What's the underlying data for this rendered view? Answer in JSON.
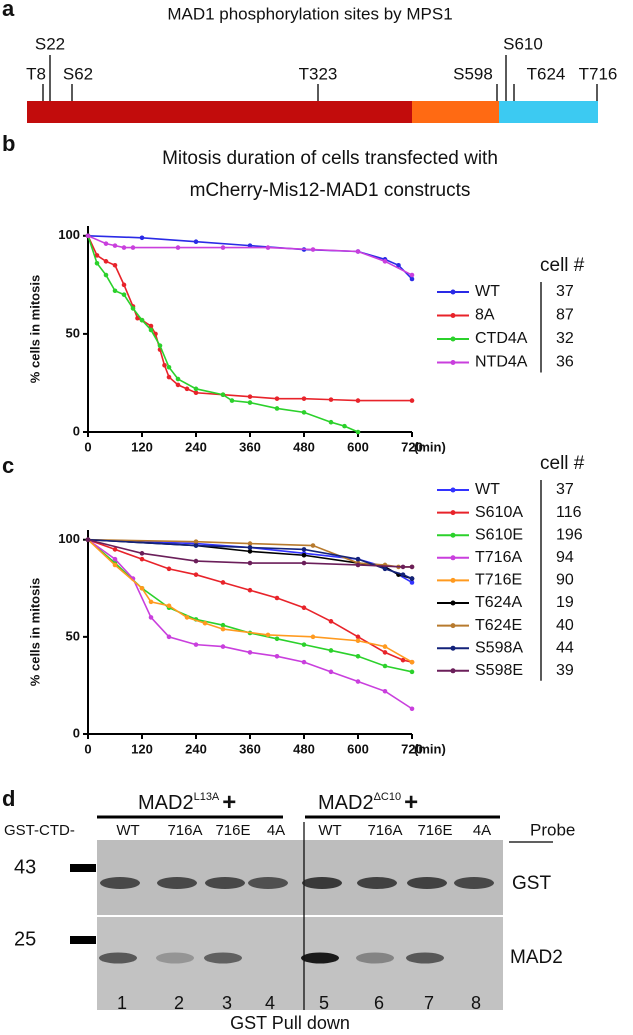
{
  "panel_a": {
    "label": "a",
    "title": "MAD1 phosphorylation sites by MPS1",
    "sites": [
      "T8",
      "S22",
      "S62",
      "T323",
      "S598",
      "S610",
      "T624",
      "T716"
    ],
    "domain_colors": [
      "#c20c0c",
      "#ff6a13",
      "#3ccaf2"
    ]
  },
  "chart_data": [
    {
      "type": "line",
      "label": "b",
      "title_lines": [
        "Mitosis duration of cells transfected with",
        "mCherry-Mis12-MAD1 constructs"
      ],
      "y_label": "% cells in mitosis",
      "x_label": "(min)",
      "legend_title": "cell #",
      "xlim": [
        0,
        720
      ],
      "xticks": [
        0,
        120,
        240,
        360,
        480,
        600,
        720
      ],
      "ylim": [
        0,
        105
      ],
      "yticks": [
        0,
        50,
        100
      ],
      "series": [
        {
          "name": "WT",
          "color": "#2a2ae6",
          "cell_count": 37,
          "x": [
            0,
            120,
            240,
            360,
            480,
            600,
            660,
            690,
            720
          ],
          "values": [
            100,
            99,
            97,
            95,
            93,
            92,
            88,
            85,
            78
          ]
        },
        {
          "name": "8A",
          "color": "#e8232a",
          "cell_count": 87,
          "x": [
            0,
            20,
            40,
            60,
            80,
            100,
            110,
            120,
            140,
            150,
            160,
            170,
            180,
            200,
            220,
            240,
            300,
            360,
            420,
            480,
            540,
            600,
            720
          ],
          "values": [
            100,
            90,
            87,
            85,
            75,
            64,
            58,
            57,
            54,
            50,
            42,
            34,
            28,
            24,
            22,
            20,
            19,
            18,
            17,
            17,
            16.5,
            16,
            16
          ]
        },
        {
          "name": "CTD4A",
          "color": "#2bd12b",
          "cell_count": 32,
          "x": [
            0,
            20,
            40,
            60,
            80,
            100,
            120,
            140,
            160,
            180,
            200,
            240,
            300,
            320,
            360,
            420,
            480,
            540,
            570,
            600
          ],
          "values": [
            100,
            86,
            80,
            72,
            70,
            63,
            57,
            52,
            44,
            33,
            27,
            22,
            19,
            16,
            15,
            12,
            10,
            5,
            3,
            0
          ]
        },
        {
          "name": "NTD4A",
          "color": "#c93fdd",
          "cell_count": 36,
          "x": [
            0,
            40,
            60,
            80,
            100,
            200,
            300,
            400,
            500,
            600,
            660,
            720
          ],
          "values": [
            100,
            96,
            95,
            94,
            94,
            94,
            94,
            94,
            93,
            92,
            87,
            80
          ]
        }
      ]
    },
    {
      "type": "line",
      "label": "c",
      "y_label": "% cells in mitosis",
      "x_label": "(min)",
      "legend_title": "cell #",
      "xlim": [
        0,
        720
      ],
      "xticks": [
        0,
        120,
        240,
        360,
        480,
        600,
        720
      ],
      "ylim": [
        0,
        105
      ],
      "yticks": [
        0,
        50,
        100
      ],
      "series": [
        {
          "name": "WT",
          "color": "#3333ff",
          "cell_count": 37,
          "x": [
            0,
            240,
            360,
            480,
            600,
            660,
            720
          ],
          "values": [
            100,
            98,
            96,
            93,
            90,
            86,
            78
          ]
        },
        {
          "name": "S610A",
          "color": "#e8232a",
          "cell_count": 116,
          "x": [
            0,
            60,
            120,
            180,
            240,
            300,
            360,
            420,
            480,
            540,
            600,
            660,
            700,
            720
          ],
          "values": [
            100,
            95,
            90,
            85,
            82,
            78,
            74,
            70,
            65,
            58,
            50,
            42,
            38,
            37
          ]
        },
        {
          "name": "S610E",
          "color": "#2bd12b",
          "cell_count": 196,
          "x": [
            0,
            60,
            120,
            180,
            240,
            300,
            360,
            420,
            480,
            540,
            600,
            660,
            720
          ],
          "values": [
            100,
            88,
            75,
            65,
            59,
            56,
            52,
            49,
            46,
            43,
            40,
            35,
            32
          ]
        },
        {
          "name": "T716A",
          "color": "#c93fdd",
          "cell_count": 94,
          "x": [
            0,
            60,
            100,
            140,
            180,
            240,
            300,
            360,
            420,
            480,
            540,
            600,
            660,
            720
          ],
          "values": [
            100,
            90,
            80,
            60,
            50,
            46,
            45,
            42,
            40,
            37,
            32,
            27,
            22,
            13
          ]
        },
        {
          "name": "T716E",
          "color": "#ff9a1f",
          "cell_count": 90,
          "x": [
            0,
            60,
            120,
            140,
            180,
            220,
            260,
            300,
            400,
            500,
            600,
            660,
            720
          ],
          "values": [
            100,
            87,
            75,
            68,
            66,
            60,
            57,
            54,
            51,
            50,
            48,
            45,
            37
          ]
        },
        {
          "name": "T624A",
          "color": "#000000",
          "cell_count": 19,
          "x": [
            0,
            240,
            360,
            480,
            600,
            660,
            690,
            720
          ],
          "values": [
            100,
            97,
            94,
            92,
            88,
            86,
            82,
            80
          ]
        },
        {
          "name": "T624E",
          "color": "#b77a2e",
          "cell_count": 40,
          "x": [
            0,
            240,
            360,
            500,
            600,
            660,
            690,
            720
          ],
          "values": [
            100,
            99,
            98,
            97,
            88,
            87,
            86,
            86
          ]
        },
        {
          "name": "S598A",
          "color": "#13227a",
          "cell_count": 44,
          "x": [
            0,
            240,
            360,
            480,
            600,
            660,
            700,
            720
          ],
          "values": [
            100,
            97,
            96,
            95,
            90,
            85,
            82,
            80
          ]
        },
        {
          "name": "S598E",
          "color": "#6b1f5a",
          "cell_count": 39,
          "x": [
            0,
            120,
            240,
            360,
            480,
            600,
            700,
            720
          ],
          "values": [
            100,
            93,
            89,
            88,
            88,
            87,
            86,
            86
          ]
        }
      ]
    }
  ],
  "panel_d": {
    "label": "d",
    "groups": [
      {
        "name": "MAD2",
        "sup": "L13A",
        "suffix": "+"
      },
      {
        "name": "MAD2",
        "sup": "ΔC10",
        "suffix": "+"
      }
    ],
    "row_label": "GST-CTD-",
    "lanes": [
      "WT",
      "716A",
      "716E",
      "4A",
      "WT",
      "716A",
      "716E",
      "4A"
    ],
    "probe_title": "Probe",
    "probes": [
      "GST",
      "MAD2"
    ],
    "markers": [
      43,
      25
    ],
    "lane_numbers": [
      1,
      2,
      3,
      4,
      5,
      6,
      7,
      8
    ],
    "footer": "GST Pull down"
  }
}
